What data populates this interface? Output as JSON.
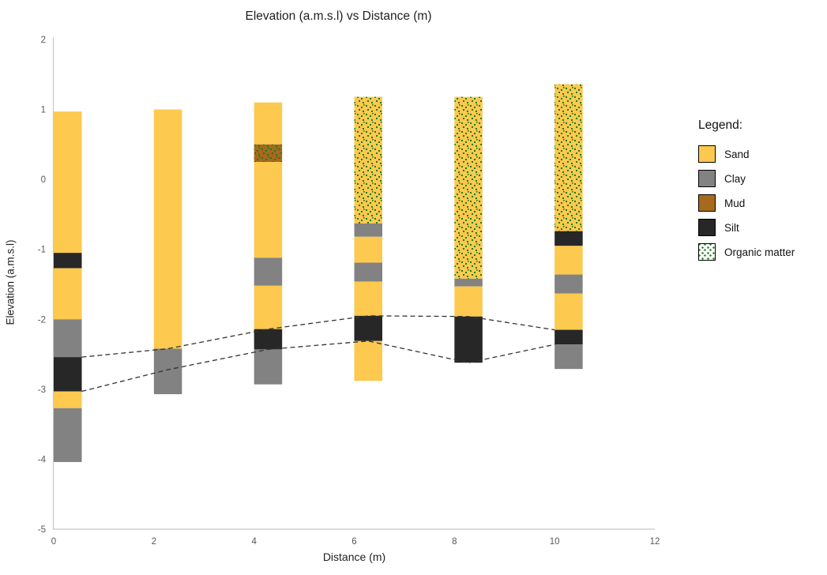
{
  "title": "Elevation (a.m.s.l) vs Distance (m)",
  "axes": {
    "x": {
      "label": "Distance (m)",
      "ticks": [
        0,
        2,
        4,
        6,
        8,
        10,
        12
      ],
      "range": [
        0,
        12
      ]
    },
    "y": {
      "label": "Elevation (a.m.s.l)",
      "ticks": [
        2,
        1,
        0,
        -1,
        -2,
        -3,
        -4,
        -5
      ],
      "range": [
        -5,
        2
      ]
    }
  },
  "legend": {
    "title": "Legend:",
    "items": [
      {
        "label": "Sand",
        "material": "sand",
        "pattern": false
      },
      {
        "label": "Clay",
        "material": "clay",
        "pattern": false
      },
      {
        "label": "Mud",
        "material": "mud",
        "pattern": false
      },
      {
        "label": "Silt",
        "material": "silt",
        "pattern": false
      },
      {
        "label": "Organic matter",
        "material": "organic",
        "pattern": true
      }
    ]
  },
  "colors": {
    "sand": "#FDC94E",
    "clay": "#828282",
    "mud": "#A6691E",
    "silt": "#272727",
    "organic_dot": "#1E7A1E",
    "axis_line": "#C8C8C8",
    "tick_text": "#595959",
    "text": "#1F1F1F",
    "dash_line": "#333333",
    "legend_pattern_bg": "#FFFFFF"
  },
  "chart_data": {
    "type": "bar",
    "subtype": "stacked-borehole-columns",
    "title": "Elevation (a.m.s.l) vs Distance (m)",
    "xlabel": "Distance (m)",
    "ylabel": "Elevation (a.m.s.l)",
    "xlim": [
      0,
      12
    ],
    "ylim": [
      -5,
      2
    ],
    "grid": false,
    "legend_position": "right",
    "bar_width_units": 0.56,
    "columns": [
      {
        "distance": 0,
        "segments": [
          {
            "material": "sand",
            "top": 0.97,
            "base": -1.05,
            "organic": false
          },
          {
            "material": "silt",
            "top": -1.05,
            "base": -1.27,
            "organic": false
          },
          {
            "material": "sand",
            "top": -1.27,
            "base": -2.0,
            "organic": false
          },
          {
            "material": "clay",
            "top": -2.0,
            "base": -2.54,
            "organic": false
          },
          {
            "material": "silt",
            "top": -2.54,
            "base": -3.03,
            "organic": false
          },
          {
            "material": "sand",
            "top": -3.03,
            "base": -3.27,
            "organic": false
          },
          {
            "material": "clay",
            "top": -3.27,
            "base": -4.04,
            "organic": false
          }
        ]
      },
      {
        "distance": 2,
        "segments": [
          {
            "material": "sand",
            "top": 1.0,
            "base": -2.42,
            "organic": false
          },
          {
            "material": "clay",
            "top": -2.42,
            "base": -3.07,
            "organic": false
          }
        ]
      },
      {
        "distance": 4,
        "segments": [
          {
            "material": "sand",
            "top": 1.1,
            "base": 0.5,
            "organic": false
          },
          {
            "material": "mud",
            "top": 0.5,
            "base": 0.25,
            "organic": true
          },
          {
            "material": "sand",
            "top": 0.25,
            "base": -1.12,
            "organic": false
          },
          {
            "material": "clay",
            "top": -1.12,
            "base": -1.52,
            "organic": false
          },
          {
            "material": "sand",
            "top": -1.52,
            "base": -2.14,
            "organic": false
          },
          {
            "material": "silt",
            "top": -2.14,
            "base": -2.43,
            "organic": false
          },
          {
            "material": "clay",
            "top": -2.43,
            "base": -2.93,
            "organic": false
          }
        ]
      },
      {
        "distance": 6,
        "segments": [
          {
            "material": "sand",
            "top": 1.18,
            "base": -0.63,
            "organic": true
          },
          {
            "material": "clay",
            "top": -0.63,
            "base": -0.82,
            "organic": false
          },
          {
            "material": "sand",
            "top": -0.82,
            "base": -1.19,
            "organic": false
          },
          {
            "material": "clay",
            "top": -1.19,
            "base": -1.46,
            "organic": false
          },
          {
            "material": "sand",
            "top": -1.46,
            "base": -1.95,
            "organic": false
          },
          {
            "material": "silt",
            "top": -1.95,
            "base": -2.31,
            "organic": false
          },
          {
            "material": "sand",
            "top": -2.31,
            "base": -2.88,
            "organic": false
          }
        ]
      },
      {
        "distance": 8,
        "segments": [
          {
            "material": "sand",
            "top": 1.18,
            "base": -1.42,
            "organic": true
          },
          {
            "material": "clay",
            "top": -1.42,
            "base": -1.53,
            "organic": false
          },
          {
            "material": "sand",
            "top": -1.53,
            "base": -1.96,
            "organic": false
          },
          {
            "material": "silt",
            "top": -1.96,
            "base": -2.62,
            "organic": false
          }
        ]
      },
      {
        "distance": 10,
        "segments": [
          {
            "material": "sand",
            "top": 1.36,
            "base": -0.74,
            "organic": true
          },
          {
            "material": "silt",
            "top": -0.74,
            "base": -0.95,
            "organic": false
          },
          {
            "material": "sand",
            "top": -0.95,
            "base": -1.36,
            "organic": false
          },
          {
            "material": "clay",
            "top": -1.36,
            "base": -1.63,
            "organic": false
          },
          {
            "material": "sand",
            "top": -1.63,
            "base": -2.15,
            "organic": false
          },
          {
            "material": "silt",
            "top": -2.15,
            "base": -2.36,
            "organic": false
          },
          {
            "material": "clay",
            "top": -2.36,
            "base": -2.71,
            "organic": false
          }
        ]
      }
    ],
    "correlation_lines": [
      {
        "name": "silt-top",
        "style": "dashed",
        "points": [
          [
            0.56,
            -2.54
          ],
          [
            2.28,
            -2.42
          ],
          [
            4.28,
            -2.14
          ],
          [
            6.28,
            -1.95
          ],
          [
            8.28,
            -1.96
          ],
          [
            10.0,
            -2.15
          ]
        ]
      },
      {
        "name": "silt-base",
        "style": "dashed",
        "points": [
          [
            0.56,
            -3.03
          ],
          [
            2.28,
            -2.72
          ],
          [
            4.28,
            -2.43
          ],
          [
            6.28,
            -2.31
          ],
          [
            8.28,
            -2.62
          ],
          [
            10.0,
            -2.36
          ]
        ]
      }
    ]
  }
}
